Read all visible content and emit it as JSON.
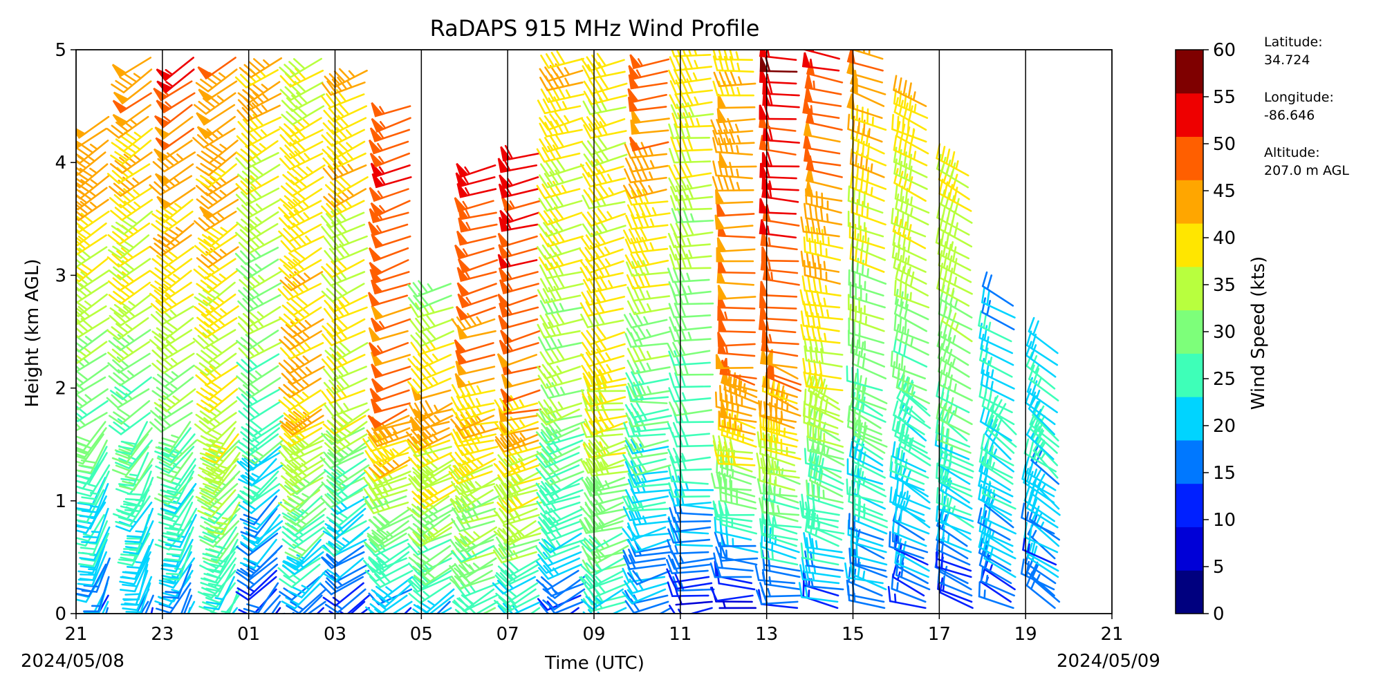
{
  "chart_data": {
    "type": "wind-barb-profile",
    "title": "RaDAPS 915 MHz Wind Profile",
    "xlabel": "Time (UTC)",
    "ylabel": "Height (km AGL)",
    "ylim": [
      0,
      5
    ],
    "yticks": [
      "0",
      "1",
      "2",
      "3",
      "4",
      "5"
    ],
    "x_hours_range": [
      0,
      24
    ],
    "xticks": [
      "21",
      "23",
      "01",
      "03",
      "05",
      "07",
      "09",
      "11",
      "13",
      "15",
      "17",
      "19",
      "21"
    ],
    "hour_lines_every": 2,
    "start_date": "2024/05/08",
    "end_date": "2024/05/09",
    "colorbar": {
      "label": "Wind Speed (kts)",
      "ticks": [
        "0",
        "5",
        "10",
        "15",
        "20",
        "25",
        "30",
        "35",
        "40",
        "45",
        "50",
        "55",
        "60"
      ],
      "colors": [
        "#00007f",
        "#0000d7",
        "#0020ff",
        "#0078ff",
        "#00d4ff",
        "#3effb8",
        "#7dff7a",
        "#b8ff3e",
        "#ffe600",
        "#ffa600",
        "#ff5f00",
        "#ee0000",
        "#7f0000"
      ]
    },
    "columns_hours": [
      1,
      2,
      3,
      4,
      5,
      6,
      7,
      8,
      9,
      10,
      11,
      12,
      13,
      14,
      15,
      16,
      17,
      18,
      19,
      20,
      21,
      22,
      23
    ],
    "column_profiles": [
      {
        "top": 4.5,
        "lowSpd": 15,
        "midSpd": 30,
        "highSpd": 50,
        "cont": 1.7,
        "dirLow": 200,
        "dirHigh": 235
      },
      {
        "top": 5.0,
        "lowSpd": 15,
        "midSpd": 30,
        "highSpd": 50,
        "cont": 1.7,
        "dirLow": 200,
        "dirHigh": 235
      },
      {
        "top": 5.0,
        "lowSpd": 18,
        "midSpd": 32,
        "highSpd": 55,
        "cont": 1.7,
        "dirLow": 205,
        "dirHigh": 235
      },
      {
        "top": 5.0,
        "lowSpd": 22,
        "midSpd": 38,
        "highSpd": 50,
        "cont": 1.7,
        "dirLow": 210,
        "dirHigh": 235
      },
      {
        "top": 5.0,
        "lowSpd": 10,
        "midSpd": 30,
        "highSpd": 45,
        "cont": 1.8,
        "dirLow": 220,
        "dirHigh": 240
      },
      {
        "top": 5.0,
        "lowSpd": 12,
        "midSpd": 45,
        "highSpd": 40,
        "cont": 1.9,
        "dirLow": 225,
        "dirHigh": 240
      },
      {
        "top": 4.9,
        "lowSpd": 10,
        "midSpd": 38,
        "highSpd": 45,
        "cont": 1.9,
        "dirLow": 230,
        "dirHigh": 245
      },
      {
        "top": 4.6,
        "lowSpd": 15,
        "midSpd": 50,
        "highSpd": 55,
        "cont": 1.9,
        "dirLow": 235,
        "dirHigh": 250
      },
      {
        "top": 3.0,
        "lowSpd": 20,
        "midSpd": 48,
        "highSpd": 30,
        "cont": 1.9,
        "dirLow": 235,
        "dirHigh": 250
      },
      {
        "top": 4.0,
        "lowSpd": 25,
        "midSpd": 45,
        "highSpd": 58,
        "cont": 1.9,
        "dirLow": 240,
        "dirHigh": 255
      },
      {
        "top": 4.1,
        "lowSpd": 22,
        "midSpd": 48,
        "highSpd": 58,
        "cont": 1.9,
        "dirLow": 240,
        "dirHigh": 255
      },
      {
        "top": 5.0,
        "lowSpd": 15,
        "midSpd": 35,
        "highSpd": 45,
        "cont": 1.9,
        "dirLow": 240,
        "dirHigh": 255
      },
      {
        "top": 5.0,
        "lowSpd": 25,
        "midSpd": 42,
        "highSpd": 40,
        "cont": 2.1,
        "dirLow": 245,
        "dirHigh": 255
      },
      {
        "top": 5.0,
        "lowSpd": 18,
        "midSpd": 30,
        "highSpd": 55,
        "cont": 2.0,
        "dirLow": 250,
        "dirHigh": 260
      },
      {
        "top": 5.0,
        "lowSpd": 8,
        "midSpd": 25,
        "highSpd": 45,
        "cont": 1.2,
        "dirLow": 260,
        "dirHigh": 265
      },
      {
        "top": 5.0,
        "lowSpd": 5,
        "midSpd": 52,
        "highSpd": 45,
        "cont": 2.1,
        "dirLow": 270,
        "dirHigh": 270
      },
      {
        "top": 5.0,
        "lowSpd": 12,
        "midSpd": 50,
        "highSpd": 60,
        "cont": 2.1,
        "dirLow": 275,
        "dirHigh": 275
      },
      {
        "top": 5.0,
        "lowSpd": 15,
        "midSpd": 40,
        "highSpd": 55,
        "cont": 1.9,
        "dirLow": 280,
        "dirHigh": 280
      },
      {
        "top": 5.0,
        "lowSpd": 18,
        "midSpd": 30,
        "highSpd": 50,
        "cont": 1.9,
        "dirLow": 285,
        "dirHigh": 290
      },
      {
        "top": 4.6,
        "lowSpd": 12,
        "midSpd": 30,
        "highSpd": 45,
        "cont": 1.9,
        "dirLow": 290,
        "dirHigh": 295
      },
      {
        "top": 3.9,
        "lowSpd": 12,
        "midSpd": 30,
        "highSpd": 42,
        "cont": 1.6,
        "dirLow": 290,
        "dirHigh": 300
      },
      {
        "top": 2.8,
        "lowSpd": 15,
        "midSpd": 28,
        "highSpd": 20,
        "cont": 1.6,
        "dirLow": 295,
        "dirHigh": 300
      },
      {
        "top": 2.4,
        "lowSpd": 15,
        "midSpd": 25,
        "highSpd": 22,
        "cont": 1.6,
        "dirLow": 300,
        "dirHigh": 305
      }
    ]
  },
  "station_info": {
    "latitude_label": "Latitude:",
    "latitude_value": "34.724",
    "longitude_label": "Longitude:",
    "longitude_value": "-86.646",
    "altitude_label": "Altitude:",
    "altitude_value": "207.0 m AGL"
  }
}
